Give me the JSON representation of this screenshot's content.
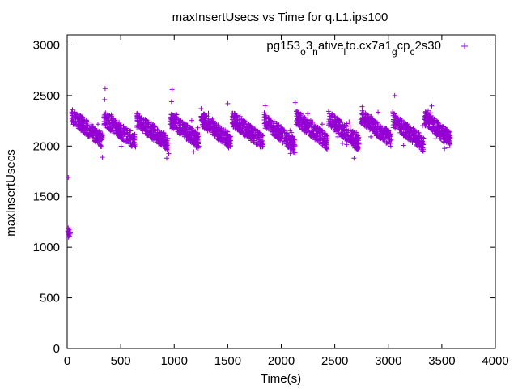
{
  "chart_data": {
    "type": "scatter",
    "title": "maxInsertUsecs vs Time for q.L1.ips100",
    "xlabel": "Time(s)",
    "ylabel": "maxInsertUsecs",
    "xlim": [
      0,
      4000
    ],
    "ylim": [
      0,
      3100
    ],
    "x_ticks": [
      0,
      500,
      1000,
      1500,
      2000,
      2500,
      3000,
      3500,
      4000
    ],
    "y_ticks": [
      0,
      500,
      1000,
      1500,
      2000,
      2500,
      3000
    ],
    "grid": false,
    "legend_position": "top-right",
    "color": "#9400d3",
    "marker": "plus",
    "series": [
      {
        "name": "pg153_o3_native_lto.cx7a1_gcp_c2s30",
        "legend_parts": [
          "pg153",
          "o",
          "3",
          "n",
          "ative",
          "l",
          "to.cx7a1",
          "g",
          "cp",
          "c",
          "2s30"
        ],
        "legend_sub": [
          false,
          true,
          false,
          true,
          false,
          true,
          false,
          true,
          false,
          true,
          false
        ],
        "startup": [
          [
            5,
            1160
          ],
          [
            8,
            1130
          ],
          [
            10,
            1190
          ],
          [
            12,
            1100
          ],
          [
            14,
            1150
          ],
          [
            16,
            1120
          ],
          [
            18,
            1170
          ],
          [
            20,
            1140
          ],
          [
            22,
            1110
          ],
          [
            25,
            1180
          ],
          [
            28,
            1130
          ],
          [
            30,
            1150
          ],
          [
            10,
            1690
          ]
        ],
        "cycles": [
          {
            "x_start": 40,
            "x_end": 330,
            "y_start": 2300,
            "y_end": 2060
          },
          {
            "x_start": 340,
            "x_end": 640,
            "y_start": 2280,
            "y_end": 2040
          },
          {
            "x_start": 650,
            "x_end": 950,
            "y_start": 2260,
            "y_end": 2020
          },
          {
            "x_start": 960,
            "x_end": 1230,
            "y_start": 2260,
            "y_end": 2050
          },
          {
            "x_start": 1250,
            "x_end": 1530,
            "y_start": 2270,
            "y_end": 2040
          },
          {
            "x_start": 1540,
            "x_end": 1830,
            "y_start": 2270,
            "y_end": 2040
          },
          {
            "x_start": 1840,
            "x_end": 2130,
            "y_start": 2260,
            "y_end": 2000
          },
          {
            "x_start": 2140,
            "x_end": 2430,
            "y_start": 2280,
            "y_end": 2040
          },
          {
            "x_start": 2440,
            "x_end": 2730,
            "y_start": 2280,
            "y_end": 2020
          },
          {
            "x_start": 2740,
            "x_end": 3030,
            "y_start": 2300,
            "y_end": 2060
          },
          {
            "x_start": 3040,
            "x_end": 3330,
            "y_start": 2260,
            "y_end": 2020
          },
          {
            "x_start": 3340,
            "x_end": 3580,
            "y_start": 2280,
            "y_end": 2060
          }
        ],
        "outliers": [
          [
            355,
            2570
          ],
          [
            350,
            2460
          ],
          [
            980,
            2560
          ],
          [
            975,
            2440
          ],
          [
            3060,
            2500
          ],
          [
            2130,
            2430
          ],
          [
            2680,
            1880
          ],
          [
            330,
            1890
          ],
          [
            930,
            1880
          ],
          [
            1500,
            2420
          ],
          [
            1850,
            2400
          ]
        ]
      }
    ]
  }
}
